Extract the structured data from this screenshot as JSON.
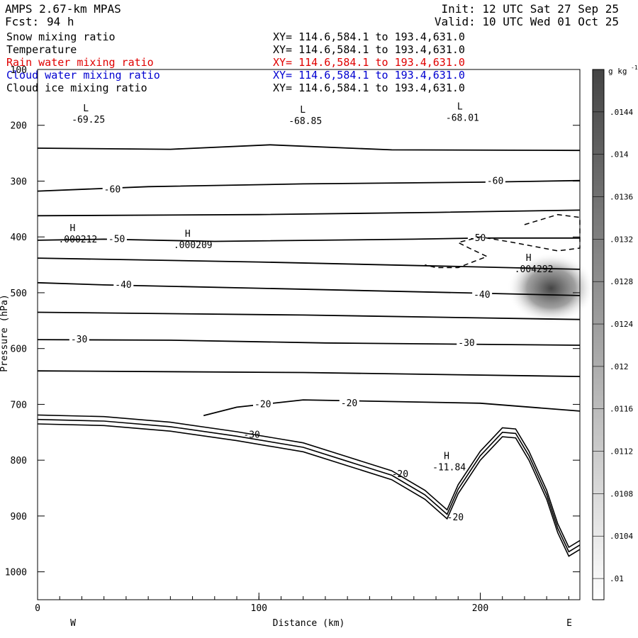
{
  "header": {
    "model": "AMPS 2.67-km MPAS",
    "fcst_label": "Fcst:",
    "fcst_hours": "94 h",
    "init": "Init: 12 UTC Sat 27 Sep 25",
    "valid": "Valid: 10 UTC Wed 01 Oct 25"
  },
  "fields": [
    {
      "label": "Snow mixing ratio",
      "xy": "XY= 114.6,584.1 to 193.4,631.0",
      "color": "#000000"
    },
    {
      "label": "Temperature",
      "xy": "XY= 114.6,584.1 to 193.4,631.0",
      "color": "#000000"
    },
    {
      "label": "Rain water mixing ratio",
      "xy": "XY= 114.6,584.1 to 193.4,631.0",
      "color": "#e00000"
    },
    {
      "label": "Cloud water mixing ratio",
      "xy": "XY= 114.6,584.1 to 193.4,631.0",
      "color": "#0000d0"
    },
    {
      "label": "Cloud ice mixing ratio",
      "xy": "XY= 114.6,584.1 to 193.4,631.0",
      "color": "#000000"
    }
  ],
  "chart_data": {
    "type": "contour",
    "xlabel": "Distance (km)",
    "ylabel": "Pressure (hPa)",
    "xlim": [
      0,
      245
    ],
    "ylim": [
      1050,
      100
    ],
    "x_ticks": [
      "0",
      "100",
      "200"
    ],
    "x_tick_values": [
      0,
      100,
      200
    ],
    "y_ticks": [
      "100",
      "200",
      "300",
      "400",
      "500",
      "600",
      "700",
      "800",
      "900",
      "1000"
    ],
    "y_tick_values": [
      100,
      200,
      300,
      400,
      500,
      600,
      700,
      800,
      900,
      1000
    ],
    "west_label": "W",
    "east_label": "E",
    "temperature_isotherms": [
      {
        "points": [
          [
            0,
            241
          ],
          [
            60,
            243
          ],
          [
            105,
            235
          ],
          [
            160,
            244
          ],
          [
            245,
            245
          ]
        ]
      },
      {
        "points": [
          [
            0,
            318
          ],
          [
            50,
            310
          ],
          [
            120,
            305
          ],
          [
            200,
            302
          ],
          [
            245,
            299
          ]
        ],
        "label": "-60",
        "label_pos": [
          30,
          315
        ],
        "label2_pos": [
          203,
          300
        ]
      },
      {
        "points": [
          [
            0,
            362
          ],
          [
            100,
            360
          ],
          [
            180,
            356
          ],
          [
            245,
            352
          ]
        ]
      },
      {
        "points": [
          [
            0,
            406
          ],
          [
            30,
            404
          ],
          [
            80,
            408
          ],
          [
            170,
            404
          ],
          [
            200,
            402
          ],
          [
            245,
            402
          ]
        ],
        "label": "-50",
        "label_pos": [
          32,
          404
        ],
        "label2_pos": [
          195,
          402
        ]
      },
      {
        "points": [
          [
            0,
            438
          ],
          [
            100,
            445
          ],
          [
            190,
            453
          ],
          [
            245,
            458
          ]
        ]
      },
      {
        "points": [
          [
            0,
            482
          ],
          [
            30,
            486
          ],
          [
            100,
            492
          ],
          [
            190,
            500
          ],
          [
            245,
            505
          ]
        ],
        "label": "-40",
        "label_pos": [
          35,
          486
        ],
        "label2_pos": [
          197,
          504
        ]
      },
      {
        "points": [
          [
            0,
            535
          ],
          [
            120,
            540
          ],
          [
            245,
            548
          ]
        ]
      },
      {
        "points": [
          [
            0,
            584
          ],
          [
            60,
            585
          ],
          [
            130,
            590
          ],
          [
            245,
            594
          ]
        ],
        "label": "-30",
        "label_pos": [
          15,
          584
        ],
        "label2_pos": [
          190,
          590
        ]
      },
      {
        "points": [
          [
            0,
            640
          ],
          [
            120,
            643
          ],
          [
            245,
            650
          ]
        ]
      },
      {
        "points": [
          [
            75,
            720
          ],
          [
            90,
            705
          ],
          [
            120,
            692
          ],
          [
            200,
            698
          ],
          [
            245,
            712
          ]
        ],
        "label": "-20",
        "label_pos": [
          98,
          700
        ],
        "label2_pos": [
          137,
          698
        ]
      }
    ],
    "extra_labels": [
      {
        "text": "-30",
        "pos": [
          93,
          760
        ]
      },
      {
        "text": "-20",
        "pos": [
          160,
          830
        ]
      },
      {
        "text": "-20",
        "pos": [
          185,
          908
        ]
      }
    ],
    "temperature_extrema": [
      {
        "type": "L",
        "value": "-69.25",
        "pos": [
          18,
          195
        ]
      },
      {
        "type": "L",
        "value": "-68.85",
        "pos": [
          116,
          198
        ]
      },
      {
        "type": "L",
        "value": "-68.01",
        "pos": [
          187,
          192
        ]
      },
      {
        "type": "H",
        "value": "-11.84",
        "pos": [
          181,
          818
        ]
      }
    ],
    "snow_extrema": [
      {
        "type": "H",
        "value": ".000212",
        "pos": [
          12,
          410
        ]
      },
      {
        "type": "H",
        "value": ".000209",
        "pos": [
          64,
          420
        ]
      },
      {
        "type": "H",
        "value": ".004292",
        "pos": [
          218,
          463
        ]
      }
    ],
    "snow_max_center": [
      232,
      492
    ],
    "terrain": [
      [
        0,
        735
      ],
      [
        30,
        738
      ],
      [
        60,
        748
      ],
      [
        90,
        765
      ],
      [
        120,
        785
      ],
      [
        140,
        810
      ],
      [
        160,
        835
      ],
      [
        175,
        870
      ],
      [
        185,
        905
      ],
      [
        190,
        860
      ],
      [
        200,
        800
      ],
      [
        210,
        758
      ],
      [
        216,
        760
      ],
      [
        222,
        800
      ],
      [
        230,
        870
      ],
      [
        235,
        930
      ],
      [
        240,
        972
      ],
      [
        245,
        960
      ]
    ],
    "dashed_cloud_outline": [
      [
        220,
        378
      ],
      [
        235,
        360
      ],
      [
        245,
        365
      ],
      [
        245,
        420
      ],
      [
        235,
        425
      ],
      [
        215,
        410
      ],
      [
        200,
        400
      ],
      [
        190,
        410
      ],
      [
        195,
        420
      ],
      [
        203,
        435
      ],
      [
        190,
        455
      ],
      [
        180,
        455
      ],
      [
        175,
        450
      ]
    ],
    "colorbar": {
      "unit": "g kg",
      "unit_exp": "-1",
      "ticks": [
        ".01",
        ".0104",
        ".0108",
        ".0112",
        ".0116",
        ".012",
        ".0124",
        ".0128",
        ".0132",
        ".0136",
        ".014",
        ".0144"
      ],
      "min": 0.0098,
      "max": 0.0148,
      "color_low": "#ffffff",
      "color_high": "#444444"
    }
  }
}
